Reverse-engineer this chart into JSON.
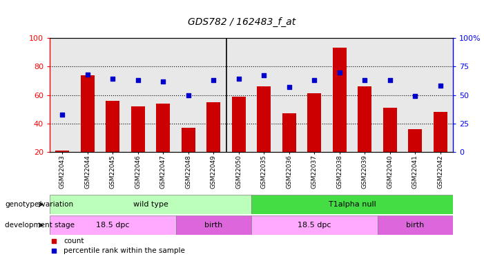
{
  "title": "GDS782 / 162483_f_at",
  "samples": [
    "GSM22043",
    "GSM22044",
    "GSM22045",
    "GSM22046",
    "GSM22047",
    "GSM22048",
    "GSM22049",
    "GSM22050",
    "GSM22035",
    "GSM22036",
    "GSM22037",
    "GSM22038",
    "GSM22039",
    "GSM22040",
    "GSM22041",
    "GSM22042"
  ],
  "counts": [
    21,
    74,
    56,
    52,
    54,
    37,
    55,
    59,
    66,
    47,
    61,
    93,
    66,
    51,
    36,
    48
  ],
  "percentiles": [
    33,
    68,
    64,
    63,
    62,
    50,
    63,
    64,
    67,
    57,
    63,
    70,
    63,
    63,
    49,
    58
  ],
  "bar_color": "#cc0000",
  "dot_color": "#0000cc",
  "ylim_left": [
    20,
    100
  ],
  "ylim_right": [
    0,
    100
  ],
  "yticks_left": [
    20,
    40,
    60,
    80,
    100
  ],
  "yticks_right": [
    0,
    25,
    50,
    75,
    100
  ],
  "yticklabels_right": [
    "0",
    "25",
    "50",
    "75",
    "100%"
  ],
  "grid_lines": [
    40,
    60,
    80
  ],
  "separator_after_idx": 7,
  "genotype_groups": [
    {
      "label": "wild type",
      "start": 0,
      "end": 8,
      "color": "#bbffbb"
    },
    {
      "label": "T1alpha null",
      "start": 8,
      "end": 16,
      "color": "#44dd44"
    }
  ],
  "development_groups": [
    {
      "label": "18.5 dpc",
      "start": 0,
      "end": 5,
      "color": "#ffaaff"
    },
    {
      "label": "birth",
      "start": 5,
      "end": 8,
      "color": "#dd66dd"
    },
    {
      "label": "18.5 dpc",
      "start": 8,
      "end": 13,
      "color": "#ffaaff"
    },
    {
      "label": "birth",
      "start": 13,
      "end": 16,
      "color": "#dd66dd"
    }
  ],
  "legend_items": [
    {
      "label": "count",
      "color": "#cc0000"
    },
    {
      "label": "percentile rank within the sample",
      "color": "#0000cc"
    }
  ],
  "plot_bg_color": "#e8e8e8",
  "white_bg": "#ffffff"
}
